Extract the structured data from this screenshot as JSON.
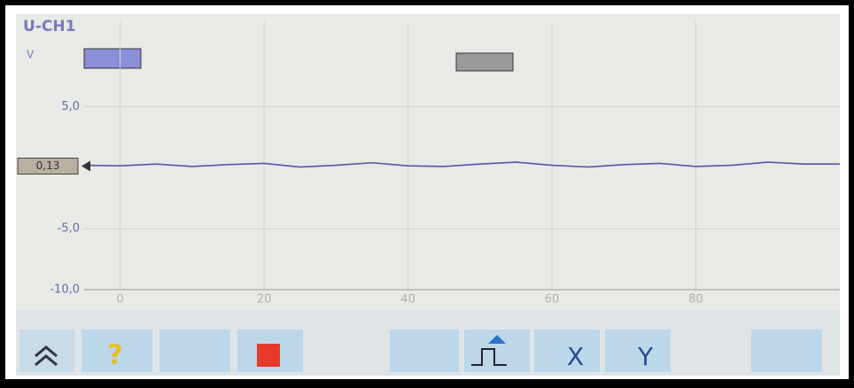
{
  "channel": "U-CH1",
  "chart_data": {
    "type": "line",
    "y_label": "V",
    "x": [
      -5,
      0,
      5,
      10,
      15,
      20,
      25,
      30,
      35,
      40,
      45,
      50,
      55,
      60,
      65,
      70,
      75,
      80,
      85,
      90,
      95,
      100
    ],
    "series": [
      {
        "name": "U-CH1",
        "color": "#5555a8",
        "values": [
          0.2,
          0.15,
          0.3,
          0.1,
          0.25,
          0.35,
          0.05,
          0.2,
          0.4,
          0.15,
          0.1,
          0.3,
          0.45,
          0.2,
          0.05,
          0.25,
          0.35,
          0.1,
          0.2,
          0.45,
          0.3,
          0.3
        ]
      }
    ],
    "xlim": [
      -5,
      100
    ],
    "ylim": [
      -10,
      12
    ],
    "xticks": [
      0,
      20,
      40,
      60,
      80
    ],
    "yticks": [
      {
        "value": 5,
        "label": "5,0"
      },
      {
        "value": -5,
        "label": "-5,0"
      },
      {
        "value": -10,
        "label": "-10,0"
      }
    ],
    "cursor_value": 0.13,
    "cursor_label": "0,13",
    "grid": true
  },
  "toolbar": {
    "x_button": "X",
    "y_button": "Y"
  }
}
